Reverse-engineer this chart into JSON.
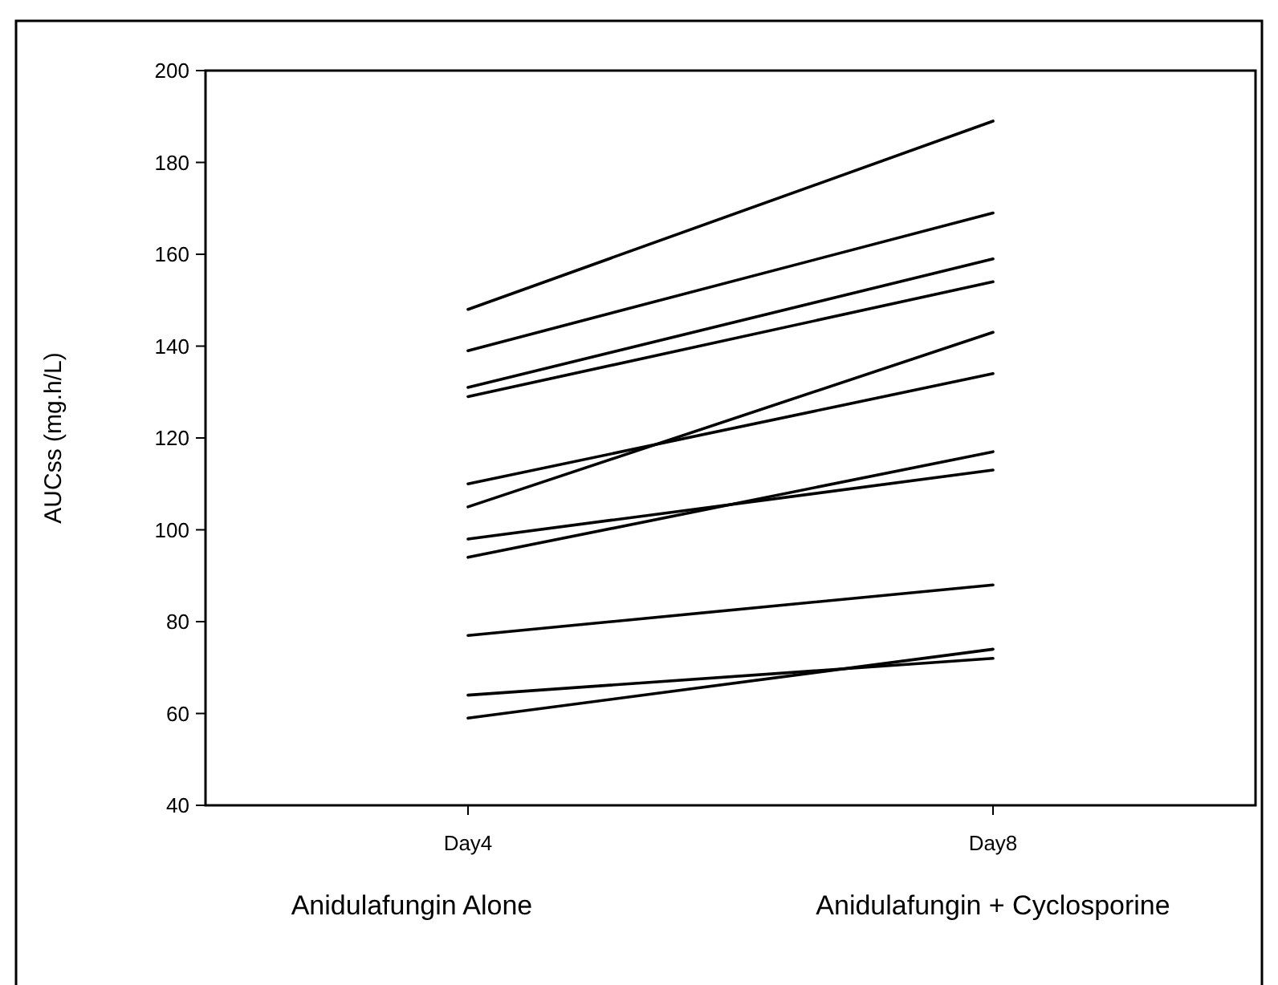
{
  "chart_data": {
    "type": "line",
    "ylabel": "AUCss (mg.h/L)",
    "categories": [
      "Day4",
      "Day8"
    ],
    "series": [
      {
        "color": "#000000",
        "values": [
          148,
          189
        ]
      },
      {
        "color": "#000000",
        "values": [
          139,
          169
        ]
      },
      {
        "color": "#000000",
        "values": [
          131,
          159
        ]
      },
      {
        "color": "#000000",
        "values": [
          129,
          154
        ]
      },
      {
        "color": "#000000",
        "values": [
          110,
          134
        ]
      },
      {
        "color": "#000000",
        "values": [
          105,
          143
        ]
      },
      {
        "color": "#000000",
        "values": [
          98,
          113
        ]
      },
      {
        "color": "#000000",
        "values": [
          94,
          117
        ]
      },
      {
        "color": "#000000",
        "values": [
          77,
          88
        ]
      },
      {
        "color": "#000000",
        "values": [
          64,
          72
        ]
      },
      {
        "color": "#000000",
        "values": [
          59,
          74
        ]
      }
    ],
    "ylim": [
      40,
      200
    ],
    "yticks": [
      40,
      60,
      80,
      100,
      120,
      140,
      160,
      180,
      200
    ],
    "grid": false,
    "marker": "none",
    "line_style": "solid",
    "annotations": [
      "Anidulafungin Alone",
      "Anidulafungin + Cyclosporine"
    ]
  }
}
